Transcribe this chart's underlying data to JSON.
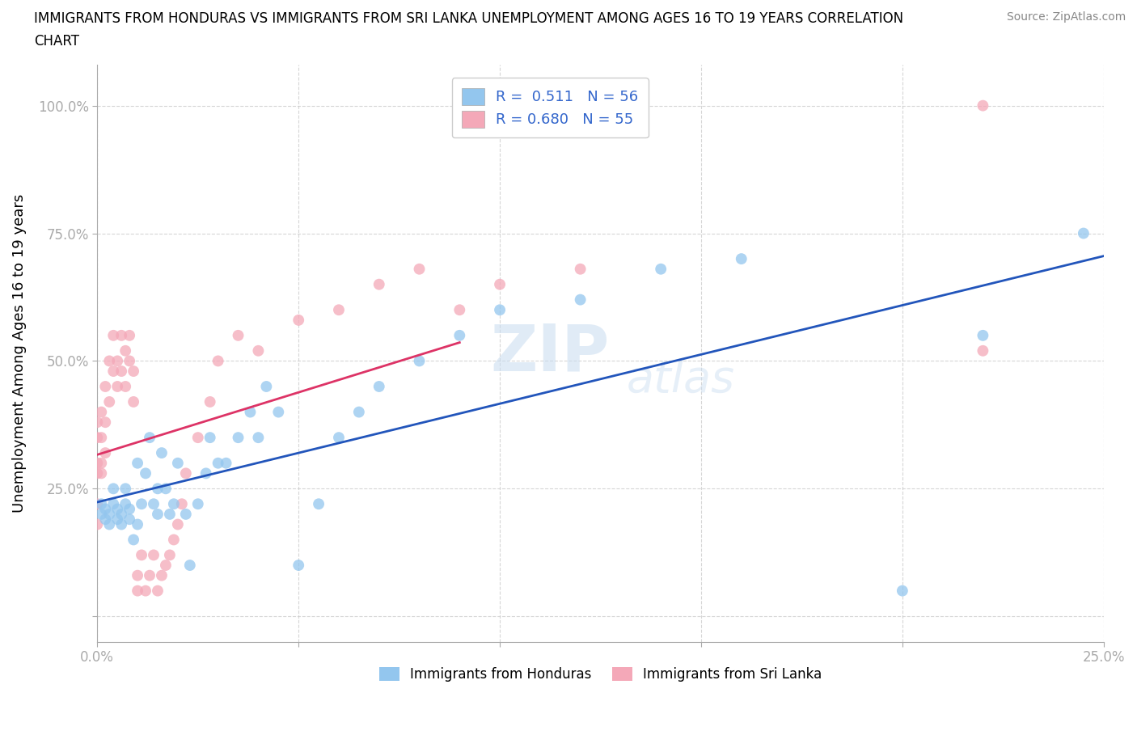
{
  "title_line1": "IMMIGRANTS FROM HONDURAS VS IMMIGRANTS FROM SRI LANKA UNEMPLOYMENT AMONG AGES 16 TO 19 YEARS CORRELATION",
  "title_line2": "CHART",
  "source": "Source: ZipAtlas.com",
  "ylabel": "Unemployment Among Ages 16 to 19 years",
  "xlim": [
    0.0,
    0.25
  ],
  "ylim": [
    -0.05,
    1.08
  ],
  "blue_color": "#93C6EE",
  "pink_color": "#F4A8B8",
  "blue_line_color": "#2255BB",
  "pink_line_color": "#DD3366",
  "watermark_zip": "ZIP",
  "watermark_atlas": "atlas",
  "r_honduras": 0.511,
  "n_honduras": 56,
  "r_sri_lanka": 0.68,
  "n_sri_lanka": 55,
  "honduras_x": [
    0.001,
    0.001,
    0.002,
    0.002,
    0.003,
    0.003,
    0.004,
    0.004,
    0.005,
    0.005,
    0.006,
    0.006,
    0.007,
    0.007,
    0.008,
    0.008,
    0.009,
    0.01,
    0.01,
    0.011,
    0.012,
    0.013,
    0.014,
    0.015,
    0.015,
    0.016,
    0.017,
    0.018,
    0.019,
    0.02,
    0.022,
    0.023,
    0.025,
    0.027,
    0.028,
    0.03,
    0.032,
    0.035,
    0.038,
    0.04,
    0.042,
    0.045,
    0.05,
    0.055,
    0.06,
    0.065,
    0.07,
    0.08,
    0.09,
    0.1,
    0.12,
    0.14,
    0.16,
    0.2,
    0.22,
    0.245
  ],
  "honduras_y": [
    0.2,
    0.22,
    0.19,
    0.21,
    0.2,
    0.18,
    0.22,
    0.25,
    0.19,
    0.21,
    0.2,
    0.18,
    0.22,
    0.25,
    0.19,
    0.21,
    0.15,
    0.18,
    0.3,
    0.22,
    0.28,
    0.35,
    0.22,
    0.25,
    0.2,
    0.32,
    0.25,
    0.2,
    0.22,
    0.3,
    0.2,
    0.1,
    0.22,
    0.28,
    0.35,
    0.3,
    0.3,
    0.35,
    0.4,
    0.35,
    0.45,
    0.4,
    0.1,
    0.22,
    0.35,
    0.4,
    0.45,
    0.5,
    0.55,
    0.6,
    0.62,
    0.68,
    0.7,
    0.05,
    0.55,
    0.75
  ],
  "sri_lanka_x": [
    0.0,
    0.0,
    0.0,
    0.0,
    0.0,
    0.0,
    0.001,
    0.001,
    0.001,
    0.001,
    0.002,
    0.002,
    0.002,
    0.003,
    0.003,
    0.004,
    0.004,
    0.005,
    0.005,
    0.006,
    0.006,
    0.007,
    0.007,
    0.008,
    0.008,
    0.009,
    0.009,
    0.01,
    0.01,
    0.011,
    0.012,
    0.013,
    0.014,
    0.015,
    0.016,
    0.017,
    0.018,
    0.019,
    0.02,
    0.021,
    0.022,
    0.025,
    0.028,
    0.03,
    0.035,
    0.04,
    0.05,
    0.06,
    0.07,
    0.08,
    0.09,
    0.1,
    0.12,
    0.22,
    0.22
  ],
  "sri_lanka_y": [
    0.38,
    0.35,
    0.3,
    0.28,
    0.22,
    0.18,
    0.4,
    0.35,
    0.3,
    0.28,
    0.45,
    0.38,
    0.32,
    0.5,
    0.42,
    0.55,
    0.48,
    0.5,
    0.45,
    0.55,
    0.48,
    0.52,
    0.45,
    0.55,
    0.5,
    0.48,
    0.42,
    0.05,
    0.08,
    0.12,
    0.05,
    0.08,
    0.12,
    0.05,
    0.08,
    0.1,
    0.12,
    0.15,
    0.18,
    0.22,
    0.28,
    0.35,
    0.42,
    0.5,
    0.55,
    0.52,
    0.58,
    0.6,
    0.65,
    0.68,
    0.6,
    0.65,
    0.68,
    0.52,
    1.0
  ]
}
